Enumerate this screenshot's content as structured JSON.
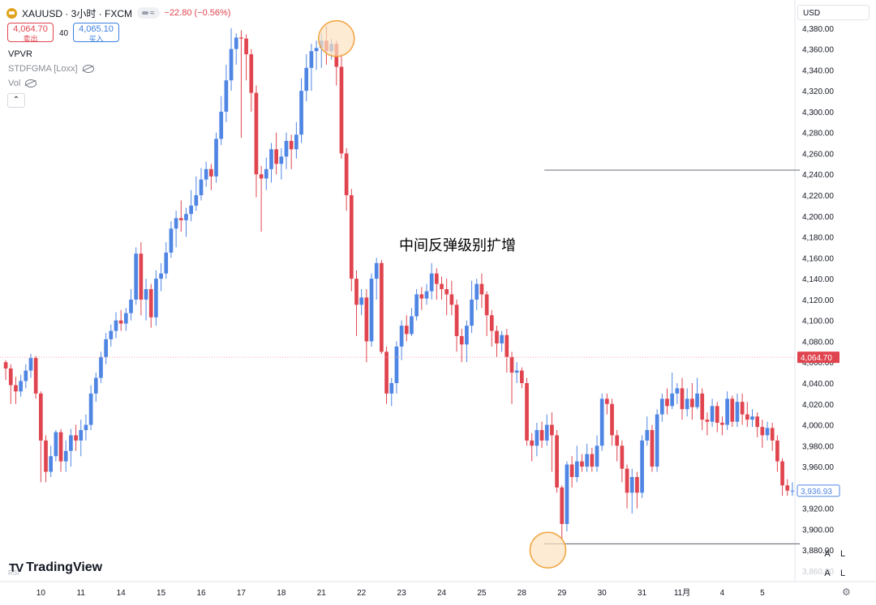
{
  "header": {
    "symbol_line": "XAUUSD · 3小时 · FXCM",
    "change": "−22.80 (−0.56%)",
    "sell_price": "4,064.70",
    "sell_label": "卖出",
    "buy_price": "4,065.10",
    "buy_label": "买入",
    "spread": "40",
    "currency": "USD",
    "pill_text": "≈"
  },
  "indicators": [
    {
      "label": "VPVR"
    },
    {
      "label": "STDFGMA [Loxx]"
    },
    {
      "label": "Vol"
    }
  ],
  "collapse_glyph": "⌃",
  "annotation": "中间反弹级别扩增",
  "brand": {
    "logo": "TV",
    "name": "TradingView",
    "rsi": "RSI"
  },
  "axis_buttons": {
    "a": "A",
    "l": "L",
    "gear": "⚙"
  },
  "colors": {
    "up": "#4f86e4",
    "down": "#e0454f",
    "marker_fill": "#fce2c2",
    "marker_stroke": "#f0a540",
    "level": "#7a7d86",
    "price_line": "#f4a8ad"
  },
  "chart_data": {
    "type": "candlestick",
    "title": "",
    "ylim": [
      3860,
      4400
    ],
    "y_ticks": [
      3880,
      3900,
      3920,
      3940,
      3960,
      3980,
      4000,
      4020,
      4040,
      4060,
      4080,
      4100,
      4120,
      4140,
      4160,
      4180,
      4200,
      4220,
      4240,
      4260,
      4280,
      4300,
      4320,
      4340,
      4360,
      4380
    ],
    "y_tick_labels": [
      "3,880.00",
      "3,900.00",
      "3,920.00",
      "3,940.00",
      "3,960.00",
      "3,980.00",
      "4,000.00",
      "4,020.00",
      "4,040.00",
      "4,060.00",
      "4,080.00",
      "4,100.00",
      "4,120.00",
      "4,140.00",
      "4,160.00",
      "4,180.00",
      "4,200.00",
      "4,220.00",
      "4,240.00",
      "4,260.00",
      "4,280.00",
      "4,300.00",
      "4,320.00",
      "4,340.00",
      "4,360.00",
      "4,380.00"
    ],
    "x_labels": [
      "10",
      "11",
      "14",
      "15",
      "16",
      "17",
      "18",
      "21",
      "22",
      "23",
      "24",
      "25",
      "28",
      "29",
      "30",
      "31",
      "11月",
      "4",
      "5"
    ],
    "x_label_index": [
      7.5,
      15.5,
      23.5,
      31.5,
      39.5,
      47.5,
      55.5,
      63.5,
      71.5,
      79.5,
      87.5,
      95.5,
      103.5,
      111.5,
      119.5,
      127.5,
      135.5,
      143.5,
      151.5
    ],
    "current_price": 4064.7,
    "current_price_label": "4,064.70",
    "last_price": 3936.93,
    "last_price_label": "3,936.93",
    "levels": [
      {
        "value": 4244,
        "from_index": 108,
        "to_index": 159
      },
      {
        "value": 3886,
        "from_index": 108,
        "to_index": 159
      }
    ],
    "markers": [
      {
        "index": 66.5,
        "value": 4370
      },
      {
        "index": 108.7,
        "value": 3880
      }
    ],
    "candles": [
      [
        4060,
        4054,
        4062,
        4043
      ],
      [
        4054,
        4038,
        4058,
        4020
      ],
      [
        4038,
        4032,
        4046,
        4020
      ],
      [
        4032,
        4042,
        4048,
        4027
      ],
      [
        4042,
        4052,
        4058,
        4035
      ],
      [
        4052,
        4064,
        4068,
        4045
      ],
      [
        4064,
        4030,
        4066,
        4025
      ],
      [
        4030,
        3985,
        4032,
        3945
      ],
      [
        3985,
        3955,
        3990,
        3945
      ],
      [
        3955,
        3970,
        3980,
        3950
      ],
      [
        3970,
        3993,
        3995,
        3965
      ],
      [
        3993,
        3965,
        3996,
        3955
      ],
      [
        3965,
        3975,
        3985,
        3955
      ],
      [
        3975,
        3990,
        3996,
        3960
      ],
      [
        3990,
        3985,
        4000,
        3975
      ],
      [
        3985,
        3995,
        4005,
        3970
      ],
      [
        3995,
        4000,
        4010,
        3985
      ],
      [
        4000,
        4030,
        4038,
        3995
      ],
      [
        4030,
        4045,
        4050,
        4022
      ],
      [
        4045,
        4065,
        4070,
        4040
      ],
      [
        4065,
        4082,
        4088,
        4058
      ],
      [
        4082,
        4090,
        4096,
        4075
      ],
      [
        4090,
        4100,
        4108,
        4083
      ],
      [
        4100,
        4097,
        4110,
        4090
      ],
      [
        4097,
        4107,
        4112,
        4090
      ],
      [
        4107,
        4120,
        4130,
        4100
      ],
      [
        4120,
        4164,
        4170,
        4115
      ],
      [
        4164,
        4120,
        4175,
        4105
      ],
      [
        4120,
        4130,
        4140,
        4100
      ],
      [
        4130,
        4103,
        4135,
        4093
      ],
      [
        4103,
        4140,
        4148,
        4095
      ],
      [
        4140,
        4145,
        4155,
        4128
      ],
      [
        4145,
        4165,
        4175,
        4140
      ],
      [
        4165,
        4188,
        4195,
        4160
      ],
      [
        4188,
        4198,
        4205,
        4170
      ],
      [
        4198,
        4196,
        4215,
        4185
      ],
      [
        4196,
        4202,
        4208,
        4180
      ],
      [
        4202,
        4210,
        4225,
        4195
      ],
      [
        4210,
        4220,
        4238,
        4205
      ],
      [
        4220,
        4235,
        4246,
        4215
      ],
      [
        4235,
        4245,
        4252,
        4228
      ],
      [
        4245,
        4238,
        4250,
        4225
      ],
      [
        4238,
        4274,
        4280,
        4232
      ],
      [
        4274,
        4300,
        4315,
        4268
      ],
      [
        4300,
        4330,
        4345,
        4290
      ],
      [
        4330,
        4360,
        4380,
        4320
      ],
      [
        4360,
        4371,
        4375,
        4345
      ],
      [
        4371,
        4370,
        4378,
        4275
      ],
      [
        4370,
        4355,
        4374,
        4330
      ],
      [
        4355,
        4318,
        4360,
        4300
      ],
      [
        4318,
        4240,
        4325,
        4218
      ],
      [
        4240,
        4236,
        4248,
        4185
      ],
      [
        4236,
        4245,
        4256,
        4225
      ],
      [
        4245,
        4264,
        4270,
        4232
      ],
      [
        4264,
        4250,
        4280,
        4240
      ],
      [
        4250,
        4257,
        4265,
        4235
      ],
      [
        4257,
        4272,
        4280,
        4245
      ],
      [
        4272,
        4264,
        4278,
        4245
      ],
      [
        4264,
        4278,
        4290,
        4255
      ],
      [
        4278,
        4320,
        4332,
        4270
      ],
      [
        4320,
        4342,
        4355,
        4310
      ],
      [
        4342,
        4358,
        4365,
        4320
      ],
      [
        4358,
        4361,
        4368,
        4340
      ],
      [
        4361,
        4368,
        4375,
        4342
      ],
      [
        4368,
        4358,
        4382,
        4345
      ],
      [
        4358,
        4365,
        4370,
        4350
      ],
      [
        4365,
        4343,
        4368,
        4325
      ],
      [
        4343,
        4260,
        4355,
        4255
      ],
      [
        4260,
        4220,
        4265,
        4205
      ],
      [
        4220,
        4140,
        4226,
        4128
      ],
      [
        4140,
        4115,
        4148,
        4085
      ],
      [
        4115,
        4122,
        4130,
        4105
      ],
      [
        4122,
        4080,
        4130,
        4060
      ],
      [
        4080,
        4140,
        4145,
        4075
      ],
      [
        4140,
        4155,
        4160,
        4120
      ],
      [
        4155,
        4070,
        4158,
        4068
      ],
      [
        4070,
        4030,
        4075,
        4020
      ],
      [
        4030,
        4040,
        4045,
        4018
      ],
      [
        4040,
        4075,
        4080,
        4030
      ],
      [
        4075,
        4095,
        4100,
        4062
      ],
      [
        4095,
        4087,
        4105,
        4080
      ],
      [
        4087,
        4104,
        4112,
        4085
      ],
      [
        4104,
        4125,
        4130,
        4100
      ],
      [
        4125,
        4121,
        4132,
        4110
      ],
      [
        4121,
        4128,
        4135,
        4115
      ],
      [
        4128,
        4145,
        4155,
        4120
      ],
      [
        4145,
        4135,
        4150,
        4120
      ],
      [
        4135,
        4130,
        4142,
        4120
      ],
      [
        4130,
        4125,
        4140,
        4105
      ],
      [
        4125,
        4115,
        4138,
        4105
      ],
      [
        4115,
        4085,
        4120,
        4070
      ],
      [
        4085,
        4077,
        4092,
        4060
      ],
      [
        4077,
        4095,
        4100,
        4060
      ],
      [
        4095,
        4120,
        4138,
        4088
      ],
      [
        4120,
        4135,
        4140,
        4110
      ],
      [
        4135,
        4125,
        4145,
        4112
      ],
      [
        4125,
        4105,
        4128,
        4085
      ],
      [
        4105,
        4090,
        4110,
        4075
      ],
      [
        4090,
        4078,
        4095,
        4065
      ],
      [
        4078,
        4086,
        4090,
        4070
      ],
      [
        4086,
        4065,
        4092,
        4050
      ],
      [
        4065,
        4050,
        4070,
        4020
      ],
      [
        4050,
        4052,
        4060,
        4040
      ],
      [
        4052,
        4040,
        4055,
        4035
      ],
      [
        4040,
        3985,
        4045,
        3980
      ],
      [
        3985,
        3980,
        3992,
        3965
      ],
      [
        3980,
        3995,
        4002,
        3970
      ],
      [
        3995,
        3985,
        4003,
        3978
      ],
      [
        3985,
        4000,
        4010,
        3980
      ],
      [
        4000,
        3990,
        4012,
        3955
      ],
      [
        3990,
        3940,
        3995,
        3935
      ],
      [
        3940,
        3905,
        3942,
        3890
      ],
      [
        3905,
        3962,
        3965,
        3898
      ],
      [
        3962,
        3950,
        3970,
        3940
      ],
      [
        3950,
        3965,
        3980,
        3945
      ],
      [
        3965,
        3960,
        3972,
        3955
      ],
      [
        3960,
        3972,
        3982,
        3955
      ],
      [
        3972,
        3960,
        3978,
        3955
      ],
      [
        3960,
        3980,
        3990,
        3955
      ],
      [
        3980,
        4025,
        4030,
        3975
      ],
      [
        4025,
        4020,
        4030,
        4010
      ],
      [
        4020,
        3990,
        4025,
        3980
      ],
      [
        3990,
        3980,
        3995,
        3965
      ],
      [
        3980,
        3958,
        3985,
        3945
      ],
      [
        3958,
        3935,
        3962,
        3920
      ],
      [
        3935,
        3950,
        3958,
        3915
      ],
      [
        3950,
        3935,
        3955,
        3920
      ],
      [
        3935,
        3985,
        3990,
        3930
      ],
      [
        3985,
        3995,
        4008,
        3980
      ],
      [
        3995,
        3960,
        4000,
        3955
      ],
      [
        3960,
        4010,
        4015,
        3955
      ],
      [
        4010,
        4025,
        4030,
        4003
      ],
      [
        4025,
        4018,
        4035,
        4010
      ],
      [
        4018,
        4030,
        4050,
        4015
      ],
      [
        4030,
        4035,
        4040,
        4020
      ],
      [
        4035,
        4015,
        4045,
        4005
      ],
      [
        4015,
        4025,
        4035,
        4008
      ],
      [
        4025,
        4017,
        4040,
        4005
      ],
      [
        4017,
        4030,
        4045,
        4015
      ],
      [
        4030,
        4005,
        4035,
        3995
      ],
      [
        4005,
        4003,
        4012,
        3990
      ],
      [
        4003,
        4018,
        4025,
        3998
      ],
      [
        4018,
        4002,
        4022,
        3993
      ],
      [
        4002,
        4000,
        4008,
        3990
      ],
      [
        4000,
        4025,
        4032,
        3995
      ],
      [
        4025,
        4003,
        4028,
        3998
      ],
      [
        4003,
        4022,
        4030,
        3998
      ],
      [
        4022,
        4010,
        4030,
        4000
      ],
      [
        4010,
        4005,
        4022,
        3998
      ],
      [
        4005,
        4008,
        4015,
        3998
      ],
      [
        4008,
        3998,
        4012,
        3988
      ],
      [
        3998,
        3990,
        4005,
        3978
      ],
      [
        3990,
        3997,
        4003,
        3985
      ],
      [
        3997,
        3985,
        4002,
        3975
      ],
      [
        3985,
        3965,
        3990,
        3955
      ],
      [
        3965,
        3942,
        3968,
        3932
      ],
      [
        3942,
        3937,
        3948,
        3932
      ],
      [
        3937,
        3937,
        3945,
        3932
      ]
    ]
  }
}
